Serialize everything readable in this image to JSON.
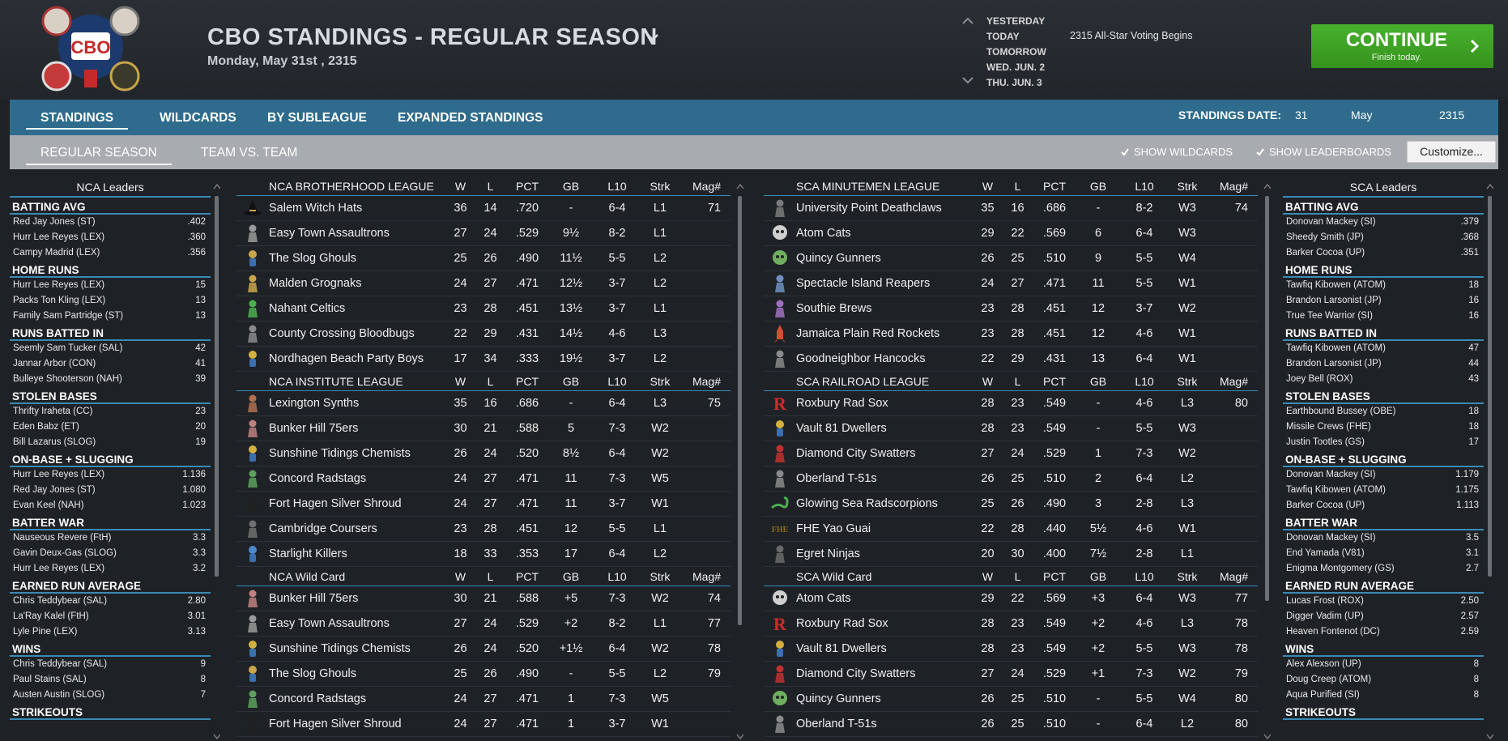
{
  "header": {
    "title": "CBO STANDINGS - REGULAR SEASON",
    "date": "Monday, May 31st , 2315",
    "date_nav": [
      "YESTERDAY",
      "TODAY",
      "TOMORROW",
      "WED. JUN. 2",
      "THU. JUN. 3"
    ],
    "event": "2315 All-Star Voting Begins",
    "continue_label": "CONTINUE",
    "continue_sub": "Finish today.",
    "logo_text": "CBO"
  },
  "tabs": [
    "STANDINGS",
    "WILDCARDS",
    "BY SUBLEAGUE",
    "EXPANDED STANDINGS"
  ],
  "standings_date": {
    "label": "STANDINGS DATE:",
    "day": "31",
    "month": "May",
    "year": "2315"
  },
  "subtabs": [
    "REGULAR SEASON",
    "TEAM VS. TEAM"
  ],
  "options": {
    "show_wildcards": "SHOW WILDCARDS",
    "show_leaderboards": "SHOW LEADERBOARDS",
    "customize": "Customize..."
  },
  "columns": {
    "w": "W",
    "l": "L",
    "pct": "PCT",
    "gb": "GB",
    "l10": "L10",
    "strk": "Strk",
    "mag": "Mag#"
  },
  "nca_leaders": {
    "title": "NCA Leaders",
    "categories": [
      {
        "name": "BATTING AVG",
        "rows": [
          [
            "Red Jay Jones (ST)",
            ".402"
          ],
          [
            "Hurr Lee Reyes (LEX)",
            ".360"
          ],
          [
            "Campy Madrid (LEX)",
            ".356"
          ]
        ]
      },
      {
        "name": "HOME RUNS",
        "rows": [
          [
            "Hurr Lee Reyes (LEX)",
            "15"
          ],
          [
            "Packs Ton Kling (LEX)",
            "13"
          ],
          [
            "Family Sam Partridge (ST)",
            "13"
          ]
        ]
      },
      {
        "name": "RUNS BATTED IN",
        "rows": [
          [
            "Seemly Sam Tucker (SAL)",
            "42"
          ],
          [
            "Jannar Arbor (CON)",
            "41"
          ],
          [
            "Bulleye Shooterson (NAH)",
            "39"
          ]
        ]
      },
      {
        "name": "STOLEN BASES",
        "rows": [
          [
            "Thrifty Iraheta (CC)",
            "23"
          ],
          [
            "Eden Babz (ET)",
            "20"
          ],
          [
            "Bill Lazarus (SLOG)",
            "19"
          ]
        ]
      },
      {
        "name": "ON-BASE + SLUGGING",
        "rows": [
          [
            "Hurr Lee Reyes (LEX)",
            "1.136"
          ],
          [
            "Red Jay Jones (ST)",
            "1.080"
          ],
          [
            "Evan Keel (NAH)",
            "1.023"
          ]
        ]
      },
      {
        "name": "BATTER WAR",
        "rows": [
          [
            "Nauseous Revere (FtH)",
            "3.3"
          ],
          [
            "Gavin Deux-Gas (SLOG)",
            "3.3"
          ],
          [
            "Hurr Lee Reyes (LEX)",
            "3.2"
          ]
        ]
      },
      {
        "name": "EARNED RUN AVERAGE",
        "rows": [
          [
            "Chris Teddybear (SAL)",
            "2.80"
          ],
          [
            "La'Ray Kalel (FtH)",
            "3.01"
          ],
          [
            "Lyle Pine (LEX)",
            "3.13"
          ]
        ]
      },
      {
        "name": "WINS",
        "rows": [
          [
            "Chris Teddybear (SAL)",
            "9"
          ],
          [
            "Paul Stains (SAL)",
            "8"
          ],
          [
            "Austen Austin (SLOG)",
            "7"
          ]
        ]
      },
      {
        "name": "STRIKEOUTS",
        "rows": []
      }
    ]
  },
  "sca_leaders": {
    "title": "SCA Leaders",
    "categories": [
      {
        "name": "BATTING AVG",
        "rows": [
          [
            "Donovan Mackey (SI)",
            ".379"
          ],
          [
            "Sheedy Smith (JP)",
            ".368"
          ],
          [
            "Barker Cocoa (UP)",
            ".351"
          ]
        ]
      },
      {
        "name": "HOME RUNS",
        "rows": [
          [
            "Tawfiq Kibowen (ATOM)",
            "18"
          ],
          [
            "Brandon Larsonist (JP)",
            "16"
          ],
          [
            "True Tee Warrior (SI)",
            "16"
          ]
        ]
      },
      {
        "name": "RUNS BATTED IN",
        "rows": [
          [
            "Tawfiq Kibowen (ATOM)",
            "47"
          ],
          [
            "Brandon Larsonist (JP)",
            "44"
          ],
          [
            "Joey Bell (ROX)",
            "43"
          ]
        ]
      },
      {
        "name": "STOLEN BASES",
        "rows": [
          [
            "Earthbound Bussey (OBE)",
            "18"
          ],
          [
            "Missile Crews (FHE)",
            "18"
          ],
          [
            "Justin Tootles (GS)",
            "17"
          ]
        ]
      },
      {
        "name": "ON-BASE + SLUGGING",
        "rows": [
          [
            "Donovan Mackey (SI)",
            "1.179"
          ],
          [
            "Tawfiq Kibowen (ATOM)",
            "1.175"
          ],
          [
            "Barker Cocoa (UP)",
            "1.113"
          ]
        ]
      },
      {
        "name": "BATTER WAR",
        "rows": [
          [
            "Donovan Mackey (SI)",
            "3.5"
          ],
          [
            "End Yamada (V81)",
            "3.1"
          ],
          [
            "Enigma Montgomery (GS)",
            "2.7"
          ]
        ]
      },
      {
        "name": "EARNED RUN AVERAGE",
        "rows": [
          [
            "Lucas Frost (ROX)",
            "2.50"
          ],
          [
            "Digger Vadim (UP)",
            "2.57"
          ],
          [
            "Heaven Fontenot (DC)",
            "2.59"
          ]
        ]
      },
      {
        "name": "WINS",
        "rows": [
          [
            "Alex Alexson (UP)",
            "8"
          ],
          [
            "Doug Creep (ATOM)",
            "8"
          ],
          [
            "Aqua Purified (SI)",
            "8"
          ]
        ]
      },
      {
        "name": "STRIKEOUTS",
        "rows": []
      }
    ]
  },
  "nca_tables": [
    {
      "title": "NCA BROTHERHOOD LEAGUE",
      "teams": [
        {
          "name": "Salem Witch Hats",
          "w": "36",
          "l": "14",
          "pct": ".720",
          "gb": "-",
          "l10": "6-4",
          "strk": "L1",
          "mag": "71",
          "icon": "witch-hat-icon",
          "color": "#2a2a2a"
        },
        {
          "name": "Easy Town Assaultrons",
          "w": "27",
          "l": "24",
          "pct": ".529",
          "gb": "9½",
          "l10": "8-2",
          "strk": "L1",
          "mag": "",
          "icon": "robot-icon",
          "color": "#9a9a9a"
        },
        {
          "name": "The Slog Ghouls",
          "w": "25",
          "l": "26",
          "pct": ".490",
          "gb": "11½",
          "l10": "5-5",
          "strk": "L2",
          "mag": "",
          "icon": "vault-boy-icon",
          "color": "#c9a64a"
        },
        {
          "name": "Malden Grognaks",
          "w": "24",
          "l": "27",
          "pct": ".471",
          "gb": "12½",
          "l10": "3-7",
          "strk": "L2",
          "mag": "",
          "icon": "barbarian-icon",
          "color": "#c9a64a"
        },
        {
          "name": "Nahant Celtics",
          "w": "23",
          "l": "28",
          "pct": ".451",
          "gb": "13½",
          "l10": "3-7",
          "strk": "L1",
          "mag": "",
          "icon": "leprechaun-icon",
          "color": "#4caf50"
        },
        {
          "name": "County Crossing Bloodbugs",
          "w": "22",
          "l": "29",
          "pct": ".431",
          "gb": "14½",
          "l10": "4-6",
          "strk": "L3",
          "mag": "",
          "icon": "bloodbug-icon",
          "color": "#8a8a8a"
        },
        {
          "name": "Nordhagen Beach Party Boys",
          "w": "17",
          "l": "34",
          "pct": ".333",
          "gb": "19½",
          "l10": "3-7",
          "strk": "L2",
          "mag": "",
          "icon": "vault-boy-icon",
          "color": "#d4b040"
        }
      ]
    },
    {
      "title": "NCA INSTITUTE LEAGUE",
      "teams": [
        {
          "name": "Lexington Synths",
          "w": "35",
          "l": "16",
          "pct": ".686",
          "gb": "-",
          "l10": "6-4",
          "strk": "L3",
          "mag": "75",
          "icon": "synth-icon",
          "color": "#b07050"
        },
        {
          "name": "Bunker Hill 75ers",
          "w": "30",
          "l": "21",
          "pct": ".588",
          "gb": "5",
          "l10": "7-3",
          "strk": "W2",
          "mag": "",
          "icon": "minuteman-icon",
          "color": "#c08080"
        },
        {
          "name": "Sunshine Tidings Chemists",
          "w": "26",
          "l": "24",
          "pct": ".520",
          "gb": "8½",
          "l10": "6-4",
          "strk": "W2",
          "mag": "",
          "icon": "vault-boy-icon",
          "color": "#d4b040"
        },
        {
          "name": "Concord Radstags",
          "w": "24",
          "l": "27",
          "pct": ".471",
          "gb": "11",
          "l10": "7-3",
          "strk": "W5",
          "mag": "",
          "icon": "radstag-icon",
          "color": "#5ca05c"
        },
        {
          "name": "Fort Hagen Silver Shroud",
          "w": "24",
          "l": "27",
          "pct": ".471",
          "gb": "11",
          "l10": "3-7",
          "strk": "W1",
          "mag": "",
          "icon": "shroud-icon",
          "color": "#202020"
        },
        {
          "name": "Cambridge Coursers",
          "w": "23",
          "l": "28",
          "pct": ".451",
          "gb": "12",
          "l10": "5-5",
          "strk": "L1",
          "mag": "",
          "icon": "courser-icon",
          "color": "#707070"
        },
        {
          "name": "Starlight Killers",
          "w": "18",
          "l": "33",
          "pct": ".353",
          "gb": "17",
          "l10": "6-4",
          "strk": "L2",
          "mag": "",
          "icon": "vault-boy-icon",
          "color": "#4a8ad0"
        }
      ]
    },
    {
      "title": "NCA  Wild Card",
      "teams": [
        {
          "name": "Bunker Hill 75ers",
          "w": "30",
          "l": "21",
          "pct": ".588",
          "gb": "+5",
          "l10": "7-3",
          "strk": "W2",
          "mag": "74",
          "icon": "minuteman-icon",
          "color": "#c08080"
        },
        {
          "name": "Easy Town Assaultrons",
          "w": "27",
          "l": "24",
          "pct": ".529",
          "gb": "+2",
          "l10": "8-2",
          "strk": "L1",
          "mag": "77",
          "icon": "robot-icon",
          "color": "#9a9a9a"
        },
        {
          "name": "Sunshine Tidings Chemists",
          "w": "26",
          "l": "24",
          "pct": ".520",
          "gb": "+1½",
          "l10": "6-4",
          "strk": "W2",
          "mag": "78",
          "icon": "vault-boy-icon",
          "color": "#d4b040"
        },
        {
          "name": "The Slog Ghouls",
          "w": "25",
          "l": "26",
          "pct": ".490",
          "gb": "-",
          "l10": "5-5",
          "strk": "L2",
          "mag": "79",
          "icon": "vault-boy-icon",
          "color": "#c9a64a"
        },
        {
          "name": "Concord Radstags",
          "w": "24",
          "l": "27",
          "pct": ".471",
          "gb": "1",
          "l10": "7-3",
          "strk": "W5",
          "mag": "",
          "icon": "radstag-icon",
          "color": "#5ca05c"
        },
        {
          "name": "Fort Hagen Silver Shroud",
          "w": "24",
          "l": "27",
          "pct": ".471",
          "gb": "1",
          "l10": "3-7",
          "strk": "W1",
          "mag": "",
          "icon": "shroud-icon",
          "color": "#202020"
        }
      ]
    }
  ],
  "sca_tables": [
    {
      "title": "SCA MINUTEMEN LEAGUE",
      "teams": [
        {
          "name": "University Point Deathclaws",
          "w": "35",
          "l": "16",
          "pct": ".686",
          "gb": "-",
          "l10": "8-2",
          "strk": "W3",
          "mag": "74",
          "icon": "deathclaw-icon",
          "color": "#7a7a7a"
        },
        {
          "name": "Atom Cats",
          "w": "29",
          "l": "22",
          "pct": ".569",
          "gb": "6",
          "l10": "6-4",
          "strk": "W3",
          "mag": "",
          "icon": "cat-icon",
          "color": "#cfcfcf"
        },
        {
          "name": "Quincy Gunners",
          "w": "26",
          "l": "25",
          "pct": ".510",
          "gb": "9",
          "l10": "5-5",
          "strk": "W4",
          "mag": "",
          "icon": "skull-icon",
          "color": "#6fae5f"
        },
        {
          "name": "Spectacle Island Reapers",
          "w": "24",
          "l": "27",
          "pct": ".471",
          "gb": "11",
          "l10": "5-5",
          "strk": "W1",
          "mag": "",
          "icon": "reaper-icon",
          "color": "#7090c0"
        },
        {
          "name": "Southie Brews",
          "w": "23",
          "l": "28",
          "pct": ".451",
          "gb": "12",
          "l10": "3-7",
          "strk": "W2",
          "mag": "",
          "icon": "brew-icon",
          "color": "#a070c0"
        },
        {
          "name": "Jamaica Plain Red Rockets",
          "w": "23",
          "l": "28",
          "pct": ".451",
          "gb": "12",
          "l10": "4-6",
          "strk": "W1",
          "mag": "",
          "icon": "rocket-icon",
          "color": "#d05030"
        },
        {
          "name": "Goodneighbor Hancocks",
          "w": "22",
          "l": "29",
          "pct": ".431",
          "gb": "13",
          "l10": "6-4",
          "strk": "W1",
          "mag": "",
          "icon": "hancock-icon",
          "color": "#8a8a8a"
        }
      ]
    },
    {
      "title": "SCA RAILROAD LEAGUE",
      "teams": [
        {
          "name": "Roxbury Rad Sox",
          "w": "28",
          "l": "23",
          "pct": ".549",
          "gb": "-",
          "l10": "4-6",
          "strk": "L3",
          "mag": "80",
          "icon": "letter-r-icon",
          "color": "#d02a2a"
        },
        {
          "name": "Vault 81 Dwellers",
          "w": "28",
          "l": "23",
          "pct": ".549",
          "gb": "-",
          "l10": "5-5",
          "strk": "W3",
          "mag": "",
          "icon": "vault-boy-icon",
          "color": "#d4b040"
        },
        {
          "name": "Diamond City Swatters",
          "w": "27",
          "l": "24",
          "pct": ".529",
          "gb": "1",
          "l10": "7-3",
          "strk": "W2",
          "mag": "",
          "icon": "swatter-icon",
          "color": "#c03030"
        },
        {
          "name": "Oberland T-51s",
          "w": "26",
          "l": "25",
          "pct": ".510",
          "gb": "2",
          "l10": "6-4",
          "strk": "L2",
          "mag": "",
          "icon": "power-armor-icon",
          "color": "#8a8a8a"
        },
        {
          "name": "Glowing Sea Radscorpions",
          "w": "25",
          "l": "26",
          "pct": ".490",
          "gb": "3",
          "l10": "2-8",
          "strk": "L3",
          "mag": "",
          "icon": "scorpion-icon",
          "color": "#4caf50"
        },
        {
          "name": "FHE Yao Guai",
          "w": "22",
          "l": "28",
          "pct": ".440",
          "gb": "5½",
          "l10": "4-6",
          "strk": "W1",
          "mag": "",
          "icon": "fhe-text-icon",
          "color": "#8a6a20"
        },
        {
          "name": "Egret Ninjas",
          "w": "20",
          "l": "30",
          "pct": ".400",
          "gb": "7½",
          "l10": "2-8",
          "strk": "L1",
          "mag": "",
          "icon": "ninja-icon",
          "color": "#6a6a6a"
        }
      ]
    },
    {
      "title": "SCA  Wild Card",
      "teams": [
        {
          "name": "Atom Cats",
          "w": "29",
          "l": "22",
          "pct": ".569",
          "gb": "+3",
          "l10": "6-4",
          "strk": "W3",
          "mag": "77",
          "icon": "cat-icon",
          "color": "#cfcfcf"
        },
        {
          "name": "Roxbury Rad Sox",
          "w": "28",
          "l": "23",
          "pct": ".549",
          "gb": "+2",
          "l10": "4-6",
          "strk": "L3",
          "mag": "78",
          "icon": "letter-r-icon",
          "color": "#d02a2a"
        },
        {
          "name": "Vault 81 Dwellers",
          "w": "28",
          "l": "23",
          "pct": ".549",
          "gb": "+2",
          "l10": "5-5",
          "strk": "W3",
          "mag": "78",
          "icon": "vault-boy-icon",
          "color": "#d4b040"
        },
        {
          "name": "Diamond City Swatters",
          "w": "27",
          "l": "24",
          "pct": ".529",
          "gb": "+1",
          "l10": "7-3",
          "strk": "W2",
          "mag": "79",
          "icon": "swatter-icon",
          "color": "#c03030"
        },
        {
          "name": "Quincy Gunners",
          "w": "26",
          "l": "25",
          "pct": ".510",
          "gb": "-",
          "l10": "5-5",
          "strk": "W4",
          "mag": "80",
          "icon": "skull-icon",
          "color": "#6fae5f"
        },
        {
          "name": "Oberland T-51s",
          "w": "26",
          "l": "25",
          "pct": ".510",
          "gb": "-",
          "l10": "6-4",
          "strk": "L2",
          "mag": "80",
          "icon": "power-armor-icon",
          "color": "#8a8a8a"
        }
      ]
    }
  ],
  "colors": {
    "tab_bar": "#2e6b8c",
    "sub_bar": "#a8abaf",
    "continue": "#3fa524",
    "accent_line": "#3a8ab5"
  }
}
